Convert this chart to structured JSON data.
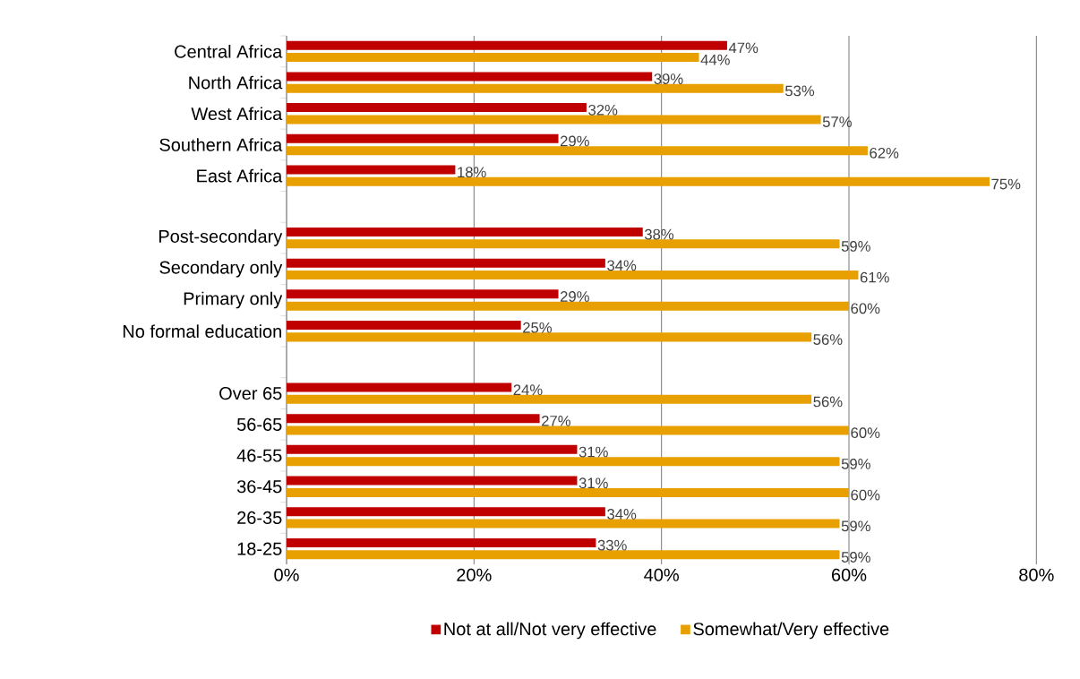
{
  "chart_data": {
    "type": "bar",
    "orientation": "horizontal",
    "categories": [
      "Central Africa",
      "North Africa",
      "West Africa",
      "Southern Africa",
      "East Africa",
      null,
      "Post-secondary",
      "Secondary only",
      "Primary only",
      "No formal education",
      null,
      "Over 65",
      "56-65",
      "46-55",
      "36-45",
      "26-35",
      "18-25"
    ],
    "series": [
      {
        "name": "Not at all/Not very effective",
        "color": "#c00000",
        "values": [
          47,
          39,
          32,
          29,
          18,
          null,
          38,
          34,
          29,
          25,
          null,
          24,
          27,
          31,
          31,
          34,
          33
        ],
        "value_labels": [
          "47%",
          "39%",
          "32%",
          "29%",
          "18%",
          null,
          "38%",
          "34%",
          "29%",
          "25%",
          null,
          "24%",
          "27%",
          "31%",
          "31%",
          "34%",
          "33%"
        ]
      },
      {
        "name": "Somewhat/Very effective",
        "color": "#e8a000",
        "values": [
          44,
          53,
          57,
          62,
          75,
          null,
          59,
          61,
          60,
          56,
          null,
          56,
          60,
          59,
          60,
          59,
          59
        ],
        "value_labels": [
          "44%",
          "53%",
          "57%",
          "62%",
          "75%",
          null,
          "59%",
          "61%",
          "60%",
          "56%",
          null,
          "56%",
          "60%",
          "59%",
          "60%",
          "59%",
          "59%"
        ]
      }
    ],
    "xlim": [
      0,
      80
    ],
    "xticks": [
      {
        "value": 0,
        "label": "0%"
      },
      {
        "value": 20,
        "label": "20%"
      },
      {
        "value": 40,
        "label": "40%"
      },
      {
        "value": 60,
        "label": "60%"
      },
      {
        "value": 80,
        "label": "80%"
      }
    ],
    "grid": "x",
    "legend": "bottom"
  }
}
